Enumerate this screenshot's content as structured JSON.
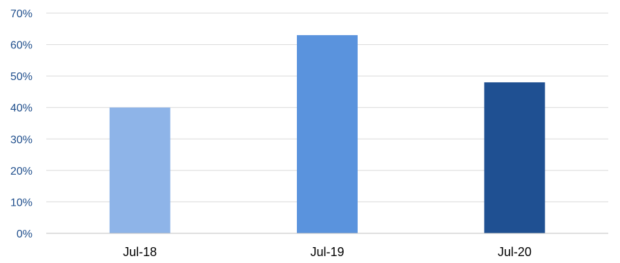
{
  "chart_data": {
    "type": "bar",
    "categories": [
      "Jul-18",
      "Jul-19",
      "Jul-20"
    ],
    "values": [
      40,
      63,
      48
    ],
    "value_unit": "%",
    "ylim": [
      0,
      70
    ],
    "yticks": [
      0,
      10,
      20,
      30,
      40,
      50,
      60,
      70
    ],
    "ytick_labels": [
      "0%",
      "10%",
      "20%",
      "30%",
      "40%",
      "50%",
      "60%",
      "70%"
    ],
    "bar_colors": [
      "#8eb4e8",
      "#5a93dd",
      "#1f5092"
    ],
    "grid": true,
    "legend": false
  }
}
